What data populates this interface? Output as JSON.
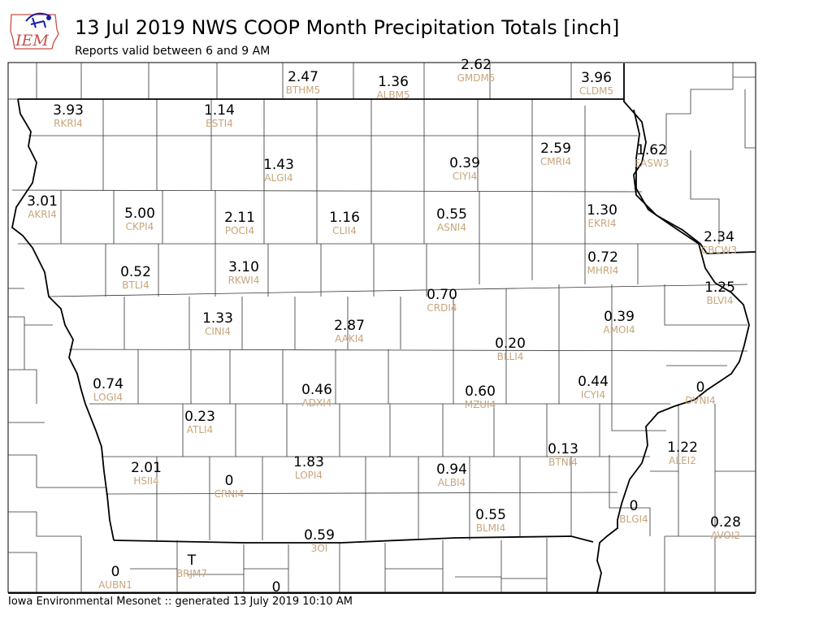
{
  "header": {
    "logo_text": "IEM",
    "title": "13 Jul 2019 NWS COOP Month Precipitation Totals [inch]",
    "subtitle": "Reports valid between 6 and 9 AM"
  },
  "footer": {
    "text": "Iowa Environmental Mesonet :: generated 13 July 2019 10:10 AM"
  },
  "colors": {
    "value_text": "#000000",
    "station_text": "#c8a57a",
    "county_lines": "#333333",
    "state_border": "#000000"
  },
  "stations": [
    {
      "id": "BTHM5",
      "value": "2.47"
    },
    {
      "id": "ALBM5",
      "value": "1.36"
    },
    {
      "id": "GMDM5",
      "value": "2.62"
    },
    {
      "id": "CLDM5",
      "value": "3.96"
    },
    {
      "id": "RKRI4",
      "value": "3.93"
    },
    {
      "id": "ESTI4",
      "value": "1.14"
    },
    {
      "id": "ALGI4",
      "value": "1.43"
    },
    {
      "id": "CIYI4",
      "value": "0.39"
    },
    {
      "id": "CMRI4",
      "value": "2.59"
    },
    {
      "id": "EASW3",
      "value": "1.62"
    },
    {
      "id": "AKRI4",
      "value": "3.01"
    },
    {
      "id": "CKPI4",
      "value": "5.00"
    },
    {
      "id": "POCI4",
      "value": "2.11"
    },
    {
      "id": "CLII4",
      "value": "1.16"
    },
    {
      "id": "ASNI4",
      "value": "0.55"
    },
    {
      "id": "EKRI4",
      "value": "1.30"
    },
    {
      "id": "CBCW3",
      "value": "2.34"
    },
    {
      "id": "BTLI4",
      "value": "0.52"
    },
    {
      "id": "RKWI4",
      "value": "3.10"
    },
    {
      "id": "MHRI4",
      "value": "0.72"
    },
    {
      "id": "CRDI4",
      "value": "0.70"
    },
    {
      "id": "BLVI4",
      "value": "1.25"
    },
    {
      "id": "CINI4",
      "value": "1.33"
    },
    {
      "id": "AAKI4",
      "value": "2.87"
    },
    {
      "id": "AMOI4",
      "value": "0.39"
    },
    {
      "id": "BLLI4",
      "value": "0.20"
    },
    {
      "id": "LOGI4",
      "value": "0.74"
    },
    {
      "id": "ADXI4",
      "value": "0.46"
    },
    {
      "id": "MZUI4",
      "value": "0.60"
    },
    {
      "id": "ICYI4",
      "value": "0.44"
    },
    {
      "id": "DVNI4",
      "value": "0"
    },
    {
      "id": "ATLI4",
      "value": "0.23"
    },
    {
      "id": "BTNI4",
      "value": "0.13"
    },
    {
      "id": "ALEI2",
      "value": "1.22"
    },
    {
      "id": "HSII4",
      "value": "2.01"
    },
    {
      "id": "CRNI4",
      "value": "0"
    },
    {
      "id": "LOPI4",
      "value": "1.83"
    },
    {
      "id": "ALBI4",
      "value": "0.94"
    },
    {
      "id": "BLMI4",
      "value": "0.55"
    },
    {
      "id": "BLGI4",
      "value": "0"
    },
    {
      "id": "AVOI2",
      "value": "0.28"
    },
    {
      "id": "3OI",
      "value": "0.59"
    },
    {
      "id": "AUBN1",
      "value": "0"
    },
    {
      "id": "BRJM7",
      "value": "T"
    },
    {
      "id": "",
      "value": "0"
    }
  ]
}
